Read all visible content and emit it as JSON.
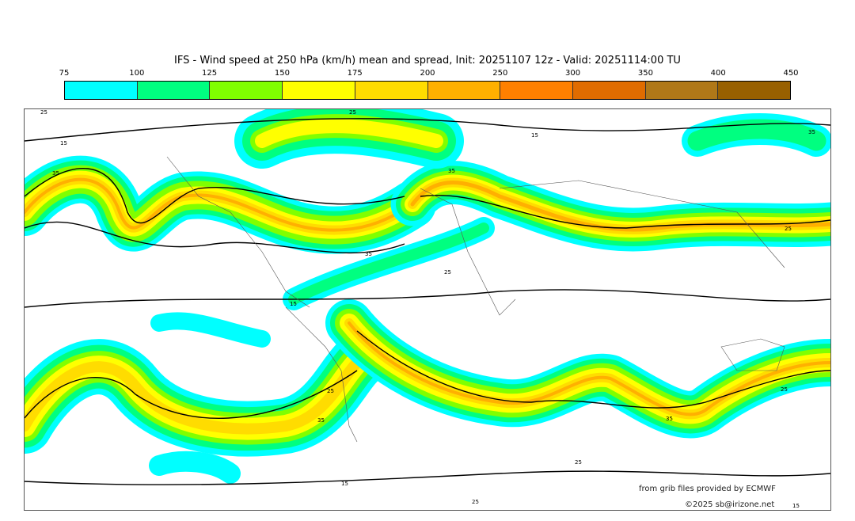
{
  "title": "IFS - Wind speed at 250 hPa (km/h) mean and spread, Init: 20251107 12z - Valid: 20251114:00 TU",
  "colorbar": {
    "ticks": [
      "75",
      "100",
      "125",
      "150",
      "175",
      "200",
      "250",
      "300",
      "350",
      "400",
      "450"
    ],
    "colors": [
      "#00ffff",
      "#00ff80",
      "#80ff00",
      "#ffff00",
      "#ffdc00",
      "#ffb000",
      "#ff8000",
      "#e06c00",
      "#b07818",
      "#986000"
    ]
  },
  "contour_labels": [
    "25",
    "25",
    "15",
    "35",
    "35",
    "35",
    "15",
    "25",
    "15",
    "25",
    "35",
    "25",
    "25",
    "35",
    "35",
    "25",
    "15",
    "25",
    "15"
  ],
  "credits": {
    "source": "from grib files provided by ECMWF",
    "copyright": "©2025 sb@irizone.net"
  }
}
